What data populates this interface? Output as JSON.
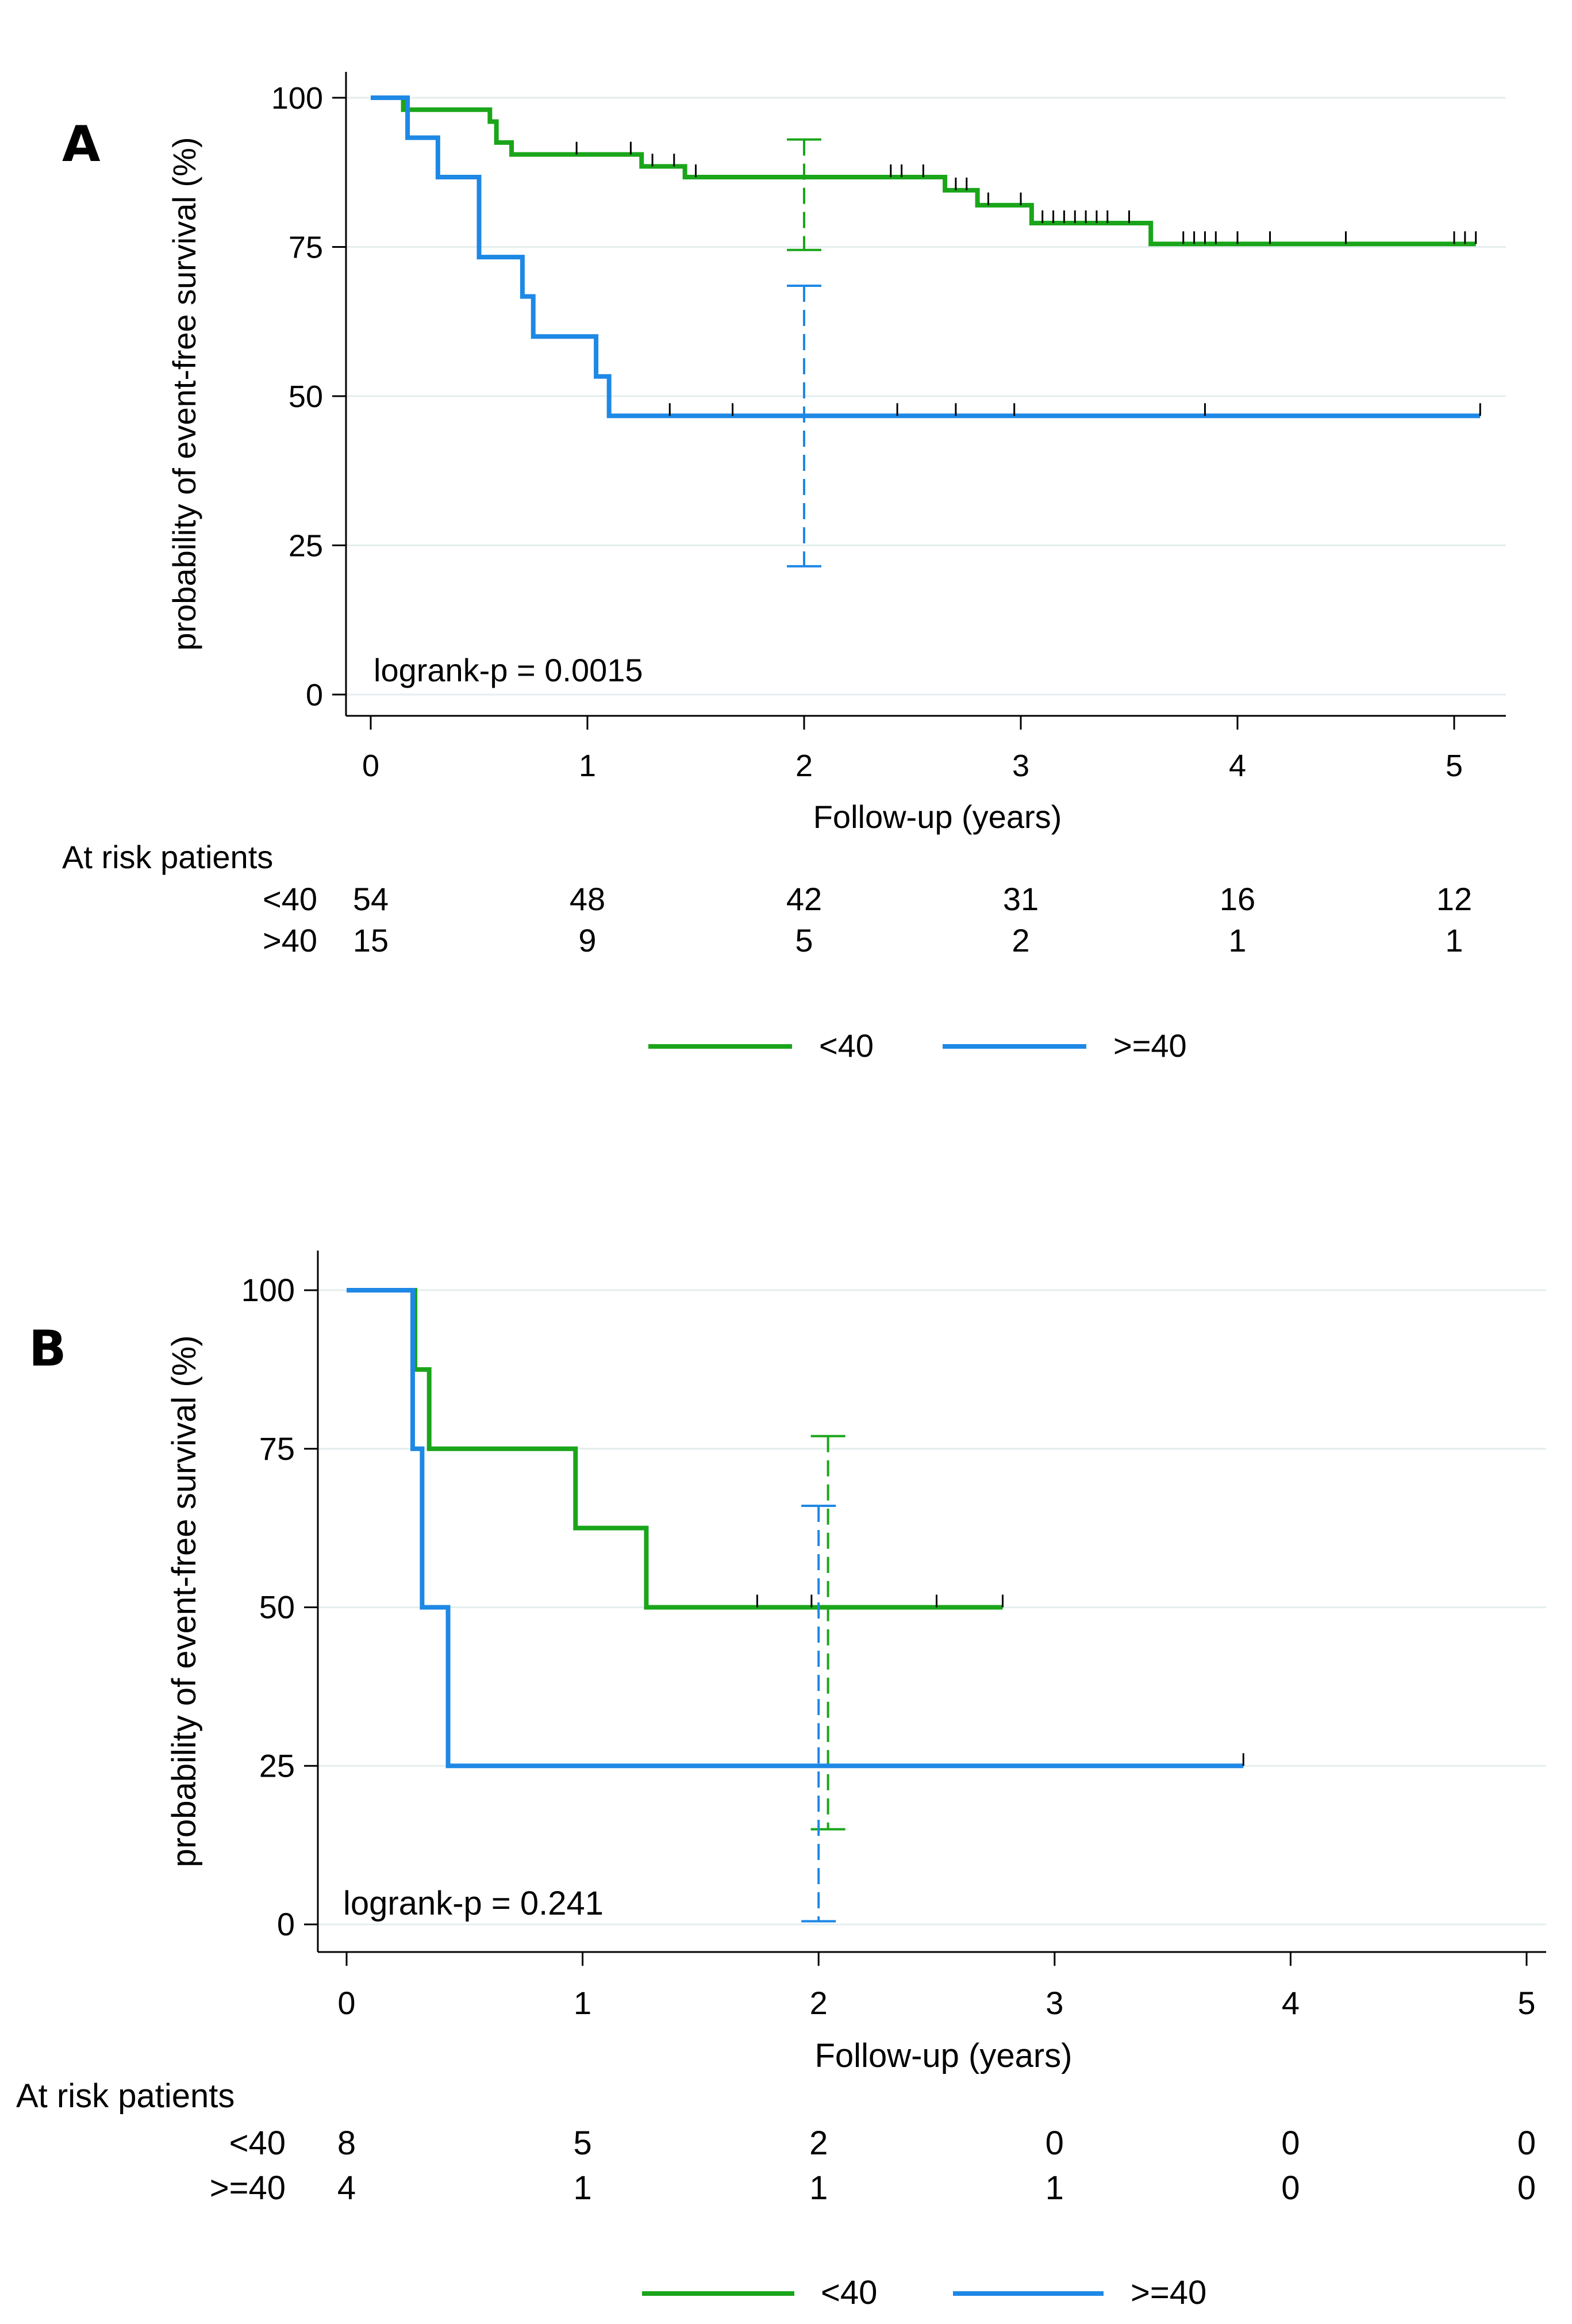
{
  "colors": {
    "under40": "#1aa51a",
    "over40": "#1e88e5",
    "grid": "#e4eeee",
    "axis": "#000000"
  },
  "chart_data": [
    {
      "type": "line",
      "panel_label": "A",
      "ylabel": "probability of event-free survival (%)",
      "xlabel": "Follow-up (years)",
      "xlim": [
        0,
        5
      ],
      "ylim": [
        0,
        100
      ],
      "x_ticks": [
        "0",
        "1",
        "2",
        "3",
        "4",
        "5"
      ],
      "y_ticks": [
        "0",
        "25",
        "50",
        "75",
        "100"
      ],
      "annotation": "logrank-p = 0.0015",
      "series": [
        {
          "name": "<40",
          "color_key": "under40",
          "steps": [
            [
              0,
              100
            ],
            [
              0.15,
              98
            ],
            [
              0.55,
              96
            ],
            [
              0.58,
              92.5
            ],
            [
              0.65,
              90.5
            ],
            [
              1.25,
              88.5
            ],
            [
              1.45,
              86.7
            ],
            [
              2.65,
              84.5
            ],
            [
              2.8,
              82
            ],
            [
              3.05,
              79
            ],
            [
              3.6,
              75.5
            ],
            [
              5.1,
              75.5
            ]
          ],
          "censored": [
            0.95,
            1.2,
            1.3,
            1.4,
            1.5,
            2.4,
            2.45,
            2.55,
            2.7,
            2.75,
            2.85,
            3.0,
            3.1,
            3.15,
            3.2,
            3.25,
            3.3,
            3.35,
            3.4,
            3.5,
            3.75,
            3.8,
            3.85,
            3.9,
            4.0,
            4.15,
            4.5,
            5.0,
            5.05,
            5.1
          ],
          "ci_at_2": {
            "x": 2,
            "lower": 74.5,
            "upper": 93
          }
        },
        {
          "name": ">=40",
          "color_key": "over40",
          "steps": [
            [
              0,
              100
            ],
            [
              0.17,
              93.3
            ],
            [
              0.31,
              86.7
            ],
            [
              0.5,
              73.3
            ],
            [
              0.7,
              66.7
            ],
            [
              0.75,
              60
            ],
            [
              1.04,
              53.3
            ],
            [
              1.1,
              46.7
            ],
            [
              5.12,
              46.7
            ]
          ],
          "censored": [
            1.38,
            1.67,
            2.43,
            2.7,
            2.97,
            3.85,
            5.12
          ],
          "ci_at_2": {
            "x": 2,
            "lower": 21.5,
            "upper": 68.5
          }
        }
      ],
      "risk_table": {
        "title": "At risk patients",
        "rows": [
          {
            "label": "<40",
            "counts": [
              "54",
              "48",
              "42",
              "31",
              "16",
              "12"
            ]
          },
          {
            "label": ">40",
            "counts": [
              "15",
              "9",
              "5",
              "2",
              "1",
              "1"
            ]
          }
        ]
      },
      "legend": [
        "<40",
        ">=40"
      ]
    },
    {
      "type": "line",
      "panel_label": "B",
      "ylabel": "probability of event-free survival (%)",
      "xlabel": "Follow-up (years)",
      "xlim": [
        0,
        5
      ],
      "ylim": [
        0,
        100
      ],
      "x_ticks": [
        "0",
        "1",
        "2",
        "3",
        "4",
        "5"
      ],
      "y_ticks": [
        "0",
        "25",
        "50",
        "75",
        "100"
      ],
      "annotation": "logrank-p = 0.241",
      "series": [
        {
          "name": "<40",
          "color_key": "under40",
          "steps": [
            [
              0,
              100
            ],
            [
              0.29,
              87.5
            ],
            [
              0.35,
              75
            ],
            [
              0.97,
              62.5
            ],
            [
              1.27,
              50
            ],
            [
              2.78,
              50
            ]
          ],
          "censored": [
            1.74,
            1.97,
            2.5,
            2.78
          ],
          "ci_at_2": {
            "x": 2.04,
            "lower": 15,
            "upper": 77
          }
        },
        {
          "name": ">=40",
          "color_key": "over40",
          "steps": [
            [
              0,
              100
            ],
            [
              0.28,
              75
            ],
            [
              0.32,
              50
            ],
            [
              0.43,
              25
            ],
            [
              3.8,
              25
            ]
          ],
          "censored": [
            3.8
          ],
          "ci_at_2": {
            "x": 2.0,
            "lower": 0.5,
            "upper": 66
          }
        }
      ],
      "risk_table": {
        "title": "At risk patients",
        "rows": [
          {
            "label": "<40",
            "counts": [
              "8",
              "5",
              "2",
              "0",
              "0",
              "0"
            ]
          },
          {
            "label": ">=40",
            "counts": [
              "4",
              "1",
              "1",
              "1",
              "0",
              "0"
            ]
          }
        ]
      },
      "legend": [
        "<40",
        ">=40"
      ]
    }
  ]
}
